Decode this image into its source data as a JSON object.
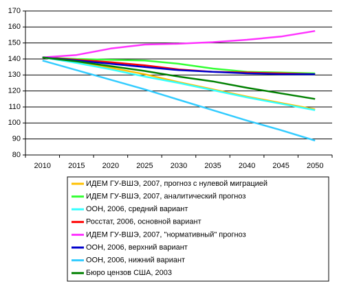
{
  "chart_data": {
    "type": "line",
    "categories": [
      "2010",
      "2015",
      "2020",
      "2025",
      "2030",
      "2035",
      "2040",
      "2045",
      "2050"
    ],
    "ylim": [
      80,
      170
    ],
    "yticks": [
      80,
      90,
      100,
      110,
      120,
      130,
      140,
      150,
      160,
      170
    ],
    "grid": true,
    "series": [
      {
        "name": "ИДЕМ ГУ-ВШЭ, 2007, прогноз с нулевой миграцией",
        "color": "#ffc000",
        "values": [
          141,
          138,
          134.5,
          130.5,
          125.5,
          121,
          116.5,
          112.5,
          108.5
        ]
      },
      {
        "name": "ИДЕМ ГУ-ВШЭ, 2007, аналитический прогноз",
        "color": "#33ff33",
        "values": [
          141,
          140,
          139.5,
          139,
          137,
          134,
          132,
          131.5,
          131
        ]
      },
      {
        "name": "ООН, 2006, средний вариант",
        "color": "#33ffff",
        "values": [
          141,
          137.5,
          133.5,
          129,
          125,
          120.5,
          116,
          112,
          108
        ]
      },
      {
        "name": "Росстат, 2006, основной вариант",
        "color": "#ff0000",
        "values": [
          141,
          139.5,
          138,
          136,
          133.5,
          132,
          131.5,
          131,
          130.5
        ]
      },
      {
        "name": "ИДЕМ ГУ-ВШЭ, 2007, \"нормативный\" прогноз",
        "color": "#ff33ff",
        "values": [
          141,
          142.5,
          146.5,
          149,
          149.5,
          150.5,
          152,
          154,
          157.5
        ]
      },
      {
        "name": "ООН, 2006, верхний вариант",
        "color": "#0000cc",
        "values": [
          141,
          139,
          137,
          135,
          133,
          132,
          131,
          130.5,
          130.5
        ]
      },
      {
        "name": "ООН, 2006, нижний вариант",
        "color": "#33ccff",
        "values": [
          139,
          133,
          127,
          121,
          114.5,
          108,
          101.5,
          95.5,
          89
        ]
      },
      {
        "name": "Бюро цензов США, 2003",
        "color": "#008000",
        "values": [
          141,
          138.5,
          135.5,
          132.5,
          129,
          126,
          122,
          118.5,
          115
        ]
      }
    ]
  }
}
